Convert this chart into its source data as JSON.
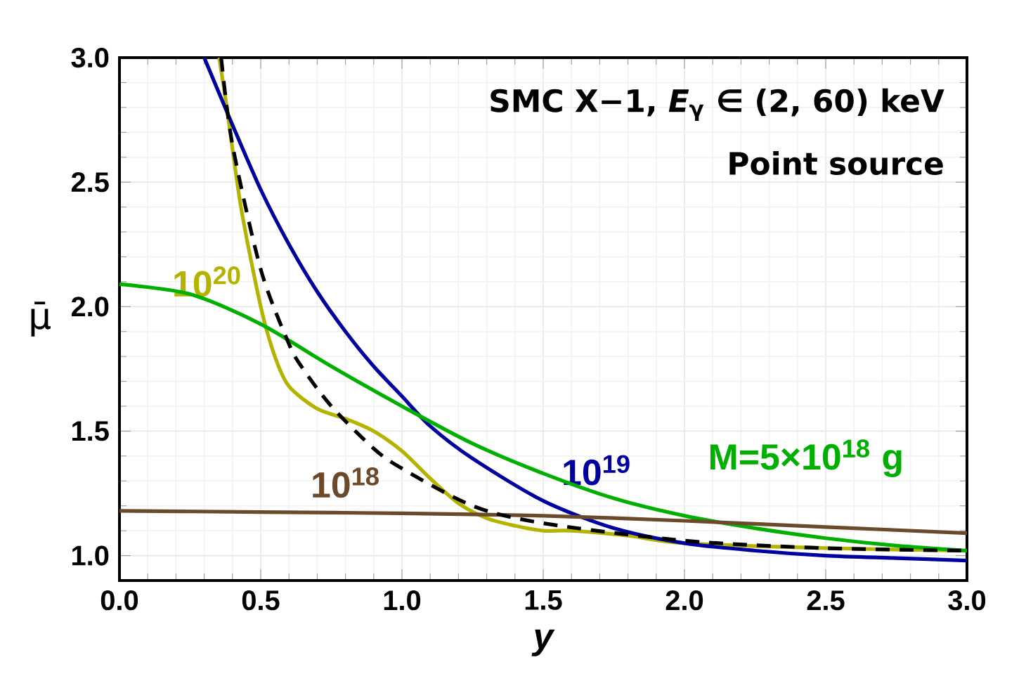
{
  "chart_data": {
    "type": "line",
    "xlabel": "y",
    "ylabel": "μ̄",
    "xlim": [
      0,
      3
    ],
    "ylim": [
      0.9,
      3.0
    ],
    "xticks": [
      {
        "value": 0,
        "label": "0.0"
      },
      {
        "value": 0.5,
        "label": "0.5"
      },
      {
        "value": 1,
        "label": "1.0"
      },
      {
        "value": 1.5,
        "label": "1.5"
      },
      {
        "value": 2,
        "label": "2.0"
      },
      {
        "value": 2.5,
        "label": "2.5"
      },
      {
        "value": 3,
        "label": "3.0"
      }
    ],
    "yticks": [
      {
        "value": 1,
        "label": "1.0"
      },
      {
        "value": 1.5,
        "label": "1.5"
      },
      {
        "value": 2,
        "label": "2.0"
      },
      {
        "value": 2.5,
        "label": "2.5"
      },
      {
        "value": 3,
        "label": "3.0"
      }
    ],
    "grid": true,
    "legend": false,
    "marker": "none",
    "annotations": [
      "SMC X−1, *E*$_{γ}$ ∈ (2, 60) keV",
      "Point source"
    ],
    "series": [
      {
        "name": "10$^{20}$",
        "color": "#b3b300",
        "x": [
          0.353,
          0.38,
          0.43,
          0.5,
          0.55,
          0.6,
          0.7,
          0.8,
          0.9,
          1.0,
          1.1,
          1.2,
          1.3,
          1.4,
          1.5,
          1.6,
          1.8,
          2.0,
          2.5,
          3.0
        ],
        "values": [
          3.0,
          2.8,
          2.4,
          2.0,
          1.8,
          1.68,
          1.59,
          1.55,
          1.5,
          1.42,
          1.31,
          1.21,
          1.15,
          1.12,
          1.1,
          1.1,
          1.08,
          1.05,
          1.03,
          1.02
        ]
      },
      {
        "name": "10$^{19}$",
        "color": "#0000a0",
        "x": [
          0.3,
          0.4,
          0.5,
          0.6,
          0.7,
          0.8,
          0.9,
          1.0,
          1.1,
          1.25,
          1.5,
          1.75,
          2.0,
          2.25,
          2.5,
          2.75,
          3.0
        ],
        "values": [
          3.0,
          2.73,
          2.47,
          2.25,
          2.06,
          1.9,
          1.76,
          1.64,
          1.52,
          1.39,
          1.22,
          1.11,
          1.05,
          1.02,
          1.0,
          0.99,
          0.98
        ]
      },
      {
        "name": "M=5×10$^{18}$ g",
        "color": "#00b000",
        "x": [
          0,
          0.25,
          0.5,
          0.75,
          1.0,
          1.25,
          1.5,
          1.75,
          2.0,
          2.25,
          2.5,
          2.75,
          3.0
        ],
        "values": [
          2.09,
          2.05,
          1.93,
          1.76,
          1.6,
          1.45,
          1.33,
          1.23,
          1.16,
          1.11,
          1.07,
          1.04,
          1.02
        ]
      },
      {
        "name": "10$^{18}$",
        "color": "#6b4a2b",
        "x": [
          0,
          0.5,
          1.0,
          1.5,
          2.0,
          2.5,
          3.0
        ],
        "values": [
          1.18,
          1.175,
          1.17,
          1.16,
          1.14,
          1.115,
          1.09
        ]
      },
      {
        "color": "#000000",
        "line_style": "dashed",
        "x": [
          0.36,
          0.4,
          0.5,
          0.6,
          0.65,
          0.75,
          0.9,
          1.0,
          1.25,
          1.5,
          2.0,
          2.5,
          3.0
        ],
        "values": [
          3.0,
          2.65,
          2.15,
          1.85,
          1.75,
          1.6,
          1.43,
          1.35,
          1.2,
          1.13,
          1.06,
          1.03,
          1.02
        ]
      }
    ]
  }
}
